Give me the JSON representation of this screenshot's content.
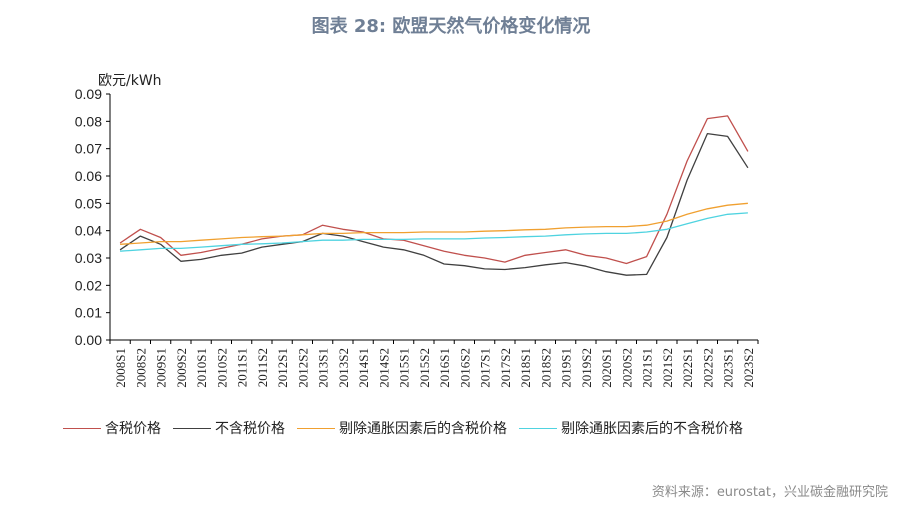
{
  "title": "图表 28: 欧盟天然气价格变化情况",
  "source": "资料来源：eurostat，兴业碳金融研究院",
  "chart_data": {
    "type": "line",
    "ylabel": "欧元/kWh",
    "ylim": [
      0,
      0.09
    ],
    "yticks": [
      "0.00",
      "0.01",
      "0.02",
      "0.03",
      "0.04",
      "0.05",
      "0.06",
      "0.07",
      "0.08",
      "0.09"
    ],
    "grid": false,
    "legend_position": "bottom",
    "categories": [
      "2008S1",
      "2008S2",
      "2009S1",
      "2009S2",
      "2010S1",
      "2010S2",
      "2011S1",
      "2011S2",
      "2012S1",
      "2012S2",
      "2013S1",
      "2013S2",
      "2014S1",
      "2014S2",
      "2015S1",
      "2015S2",
      "2016S1",
      "2016S2",
      "2017S1",
      "2017S2",
      "2018S1",
      "2018S2",
      "2019S1",
      "2019S2",
      "2020S1",
      "2020S2",
      "2021S1",
      "2021S2",
      "2022S1",
      "2022S2",
      "2023S1",
      "2023S2"
    ],
    "series": [
      {
        "name": "含税价格",
        "color": "#c0504d",
        "values": [
          0.0355,
          0.0405,
          0.0375,
          0.031,
          0.032,
          0.0335,
          0.035,
          0.037,
          0.038,
          0.0385,
          0.042,
          0.0405,
          0.0395,
          0.037,
          0.0365,
          0.0345,
          0.0325,
          0.031,
          0.03,
          0.0285,
          0.031,
          0.032,
          0.033,
          0.031,
          0.03,
          0.028,
          0.0305,
          0.046,
          0.0655,
          0.081,
          0.082,
          0.069
        ]
      },
      {
        "name": "不含税价格",
        "color": "#404040",
        "values": [
          0.033,
          0.038,
          0.035,
          0.0288,
          0.0295,
          0.031,
          0.0318,
          0.034,
          0.035,
          0.036,
          0.039,
          0.038,
          0.036,
          0.034,
          0.033,
          0.031,
          0.0278,
          0.0272,
          0.026,
          0.0258,
          0.0265,
          0.0275,
          0.0283,
          0.027,
          0.025,
          0.0237,
          0.024,
          0.0375,
          0.0585,
          0.0755,
          0.0745,
          0.063
        ]
      },
      {
        "name": "剔除通胀因素后的含税价格",
        "color": "#f0a030",
        "values": [
          0.035,
          0.0355,
          0.036,
          0.036,
          0.0365,
          0.037,
          0.0375,
          0.0378,
          0.038,
          0.0385,
          0.039,
          0.039,
          0.0393,
          0.0393,
          0.0393,
          0.0395,
          0.0395,
          0.0395,
          0.0398,
          0.04,
          0.0403,
          0.0405,
          0.041,
          0.0413,
          0.0415,
          0.0415,
          0.042,
          0.0435,
          0.046,
          0.048,
          0.0493,
          0.05
        ]
      },
      {
        "name": "剔除通胀因素后的不含税价格",
        "color": "#4fd3e0",
        "values": [
          0.0325,
          0.033,
          0.0335,
          0.0335,
          0.034,
          0.0345,
          0.035,
          0.0352,
          0.0355,
          0.036,
          0.0365,
          0.0365,
          0.0368,
          0.0368,
          0.0368,
          0.037,
          0.037,
          0.037,
          0.0373,
          0.0375,
          0.0378,
          0.038,
          0.0385,
          0.0388,
          0.039,
          0.039,
          0.0395,
          0.0405,
          0.0425,
          0.0445,
          0.046,
          0.0465
        ]
      }
    ]
  }
}
